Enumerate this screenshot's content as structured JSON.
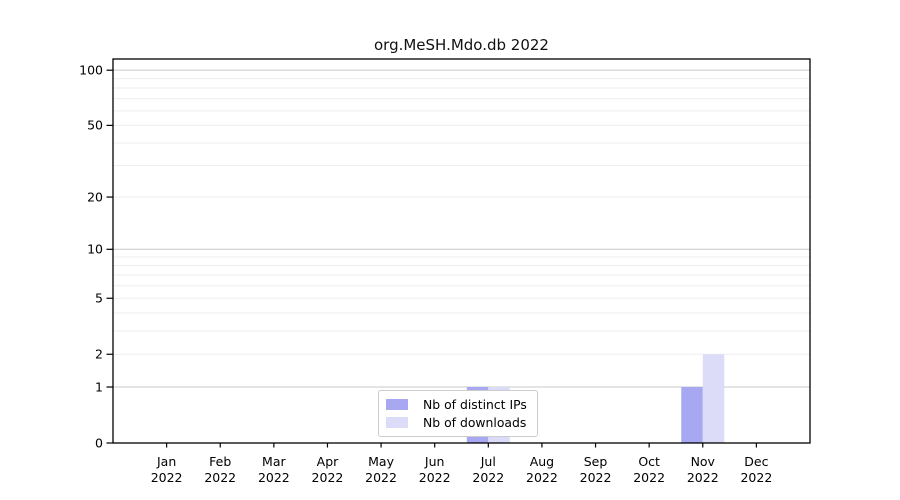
{
  "chart_data": {
    "type": "bar",
    "title": "org.MeSH.Mdo.db 2022",
    "categories": [
      "Jan",
      "Feb",
      "Mar",
      "Apr",
      "May",
      "Jun",
      "Jul",
      "Aug",
      "Sep",
      "Oct",
      "Nov",
      "Dec"
    ],
    "category_year": "2022",
    "series": [
      {
        "name": "Nb of distinct IPs",
        "color": "#a7a7f2",
        "values": [
          0,
          0,
          0,
          0,
          0,
          0,
          1,
          0,
          0,
          0,
          1,
          0
        ]
      },
      {
        "name": "Nb of downloads",
        "color": "#dcdcf8",
        "values": [
          0,
          0,
          0,
          0,
          0,
          0,
          1,
          0,
          0,
          0,
          2,
          0
        ]
      }
    ],
    "yticks": [
      0,
      1,
      2,
      5,
      10,
      20,
      50,
      100
    ],
    "yscale": "log10(1+v)",
    "ylim": [
      0,
      115
    ],
    "grid": true,
    "legend_position": "bottom-center",
    "axis_color": "#000000",
    "grid_major_color": "#c9c9c9",
    "grid_minor_color": "#ededed"
  }
}
